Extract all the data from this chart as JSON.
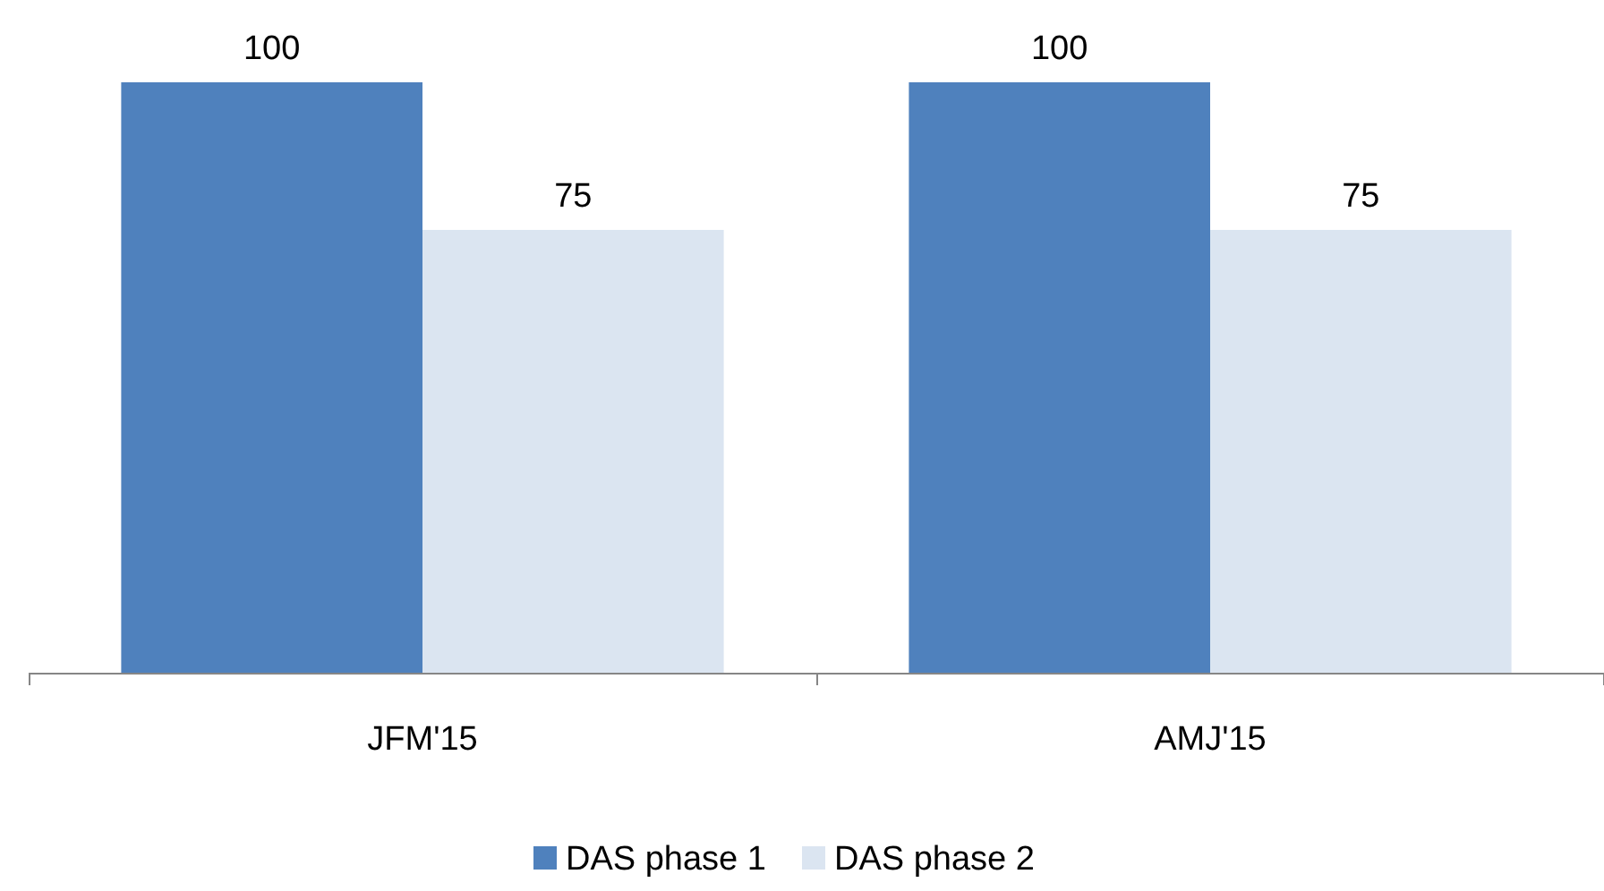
{
  "chart_data": {
    "type": "bar",
    "categories": [
      "JFM'15",
      "AMJ'15"
    ],
    "series": [
      {
        "name": "DAS phase 1",
        "color": "#4f81bd",
        "values": [
          100,
          100
        ]
      },
      {
        "name": "DAS phase 2",
        "color": "#dbe5f1",
        "values": [
          75,
          75
        ]
      }
    ],
    "data_labels": true,
    "legend": "bottom",
    "grid": false
  }
}
